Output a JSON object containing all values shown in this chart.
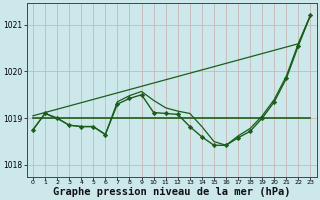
{
  "x": [
    0,
    1,
    2,
    3,
    4,
    5,
    6,
    7,
    8,
    9,
    10,
    11,
    12,
    13,
    14,
    15,
    16,
    17,
    18,
    19,
    20,
    21,
    22,
    23
  ],
  "y_main": [
    1018.75,
    1019.1,
    1019.0,
    1018.85,
    1018.82,
    1018.82,
    1018.65,
    1019.3,
    1019.42,
    1019.5,
    1019.12,
    1019.1,
    1019.08,
    1018.82,
    1018.6,
    1018.42,
    1018.42,
    1018.58,
    1018.72,
    1019.0,
    1019.35,
    1019.85,
    1020.55,
    1021.2
  ],
  "y_linear": [
    1019.05,
    1019.12,
    1019.19,
    1019.26,
    1019.33,
    1019.4,
    1019.47,
    1019.54,
    1019.61,
    1019.68,
    1019.75,
    1019.82,
    1019.89,
    1019.96,
    1020.03,
    1020.1,
    1020.17,
    1020.24,
    1020.31,
    1020.38,
    1020.45,
    1020.52,
    1020.59,
    1021.2
  ],
  "y_flat": [
    1019.0,
    1019.0,
    1019.0,
    1019.0,
    1019.0,
    1019.0,
    1019.0,
    1019.0,
    1019.0,
    1019.0,
    1019.0,
    1019.0,
    1019.0,
    1019.0,
    1019.0,
    1019.0,
    1019.0,
    1019.0,
    1019.0,
    1019.0,
    1019.0,
    1019.0,
    1019.0,
    1019.0
  ],
  "y_smooth": [
    1018.75,
    1019.1,
    1019.0,
    1018.85,
    1018.82,
    1018.82,
    1018.65,
    1019.35,
    1019.48,
    1019.57,
    1019.38,
    1019.22,
    1019.15,
    1019.1,
    1018.82,
    1018.5,
    1018.42,
    1018.62,
    1018.78,
    1019.05,
    1019.4,
    1019.9,
    1020.6,
    1021.2
  ],
  "line_color": "#1a5e1a",
  "bg_color": "#cce8ea",
  "grid_color": "#c8b8b8",
  "xlabel": "Graphe pression niveau de la mer (hPa)",
  "ylim": [
    1017.75,
    1021.45
  ],
  "yticks": [
    1018,
    1019,
    1020,
    1021
  ],
  "xticks": [
    0,
    1,
    2,
    3,
    4,
    5,
    6,
    7,
    8,
    9,
    10,
    11,
    12,
    13,
    14,
    15,
    16,
    17,
    18,
    19,
    20,
    21,
    22,
    23
  ]
}
